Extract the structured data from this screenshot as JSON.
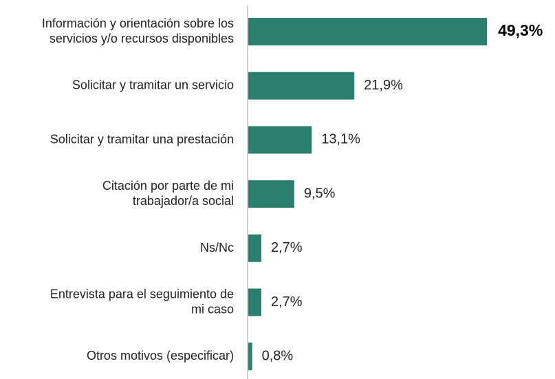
{
  "chart_data": {
    "type": "bar",
    "orientation": "horizontal",
    "categories": [
      [
        "Información y orientación sobre los",
        "servicios y/o recursos disponibles"
      ],
      [
        "Solicitar y tramitar un servicio"
      ],
      [
        "Solicitar y tramitar una prestación"
      ],
      [
        "Citación por parte de mi",
        "trabajador/a social"
      ],
      [
        "Ns/Nc"
      ],
      [
        "Entrevista para el seguimiento de",
        "mi caso"
      ],
      [
        "Otros motivos (especificar)"
      ]
    ],
    "values": [
      49.3,
      21.9,
      13.1,
      9.5,
      2.7,
      2.7,
      0.8
    ],
    "value_labels": [
      "49,3%",
      "21,9%",
      "13,1%",
      "9,5%",
      "2,7%",
      "2,7%",
      "0,8%"
    ],
    "color": "#2b7f6e"
  }
}
